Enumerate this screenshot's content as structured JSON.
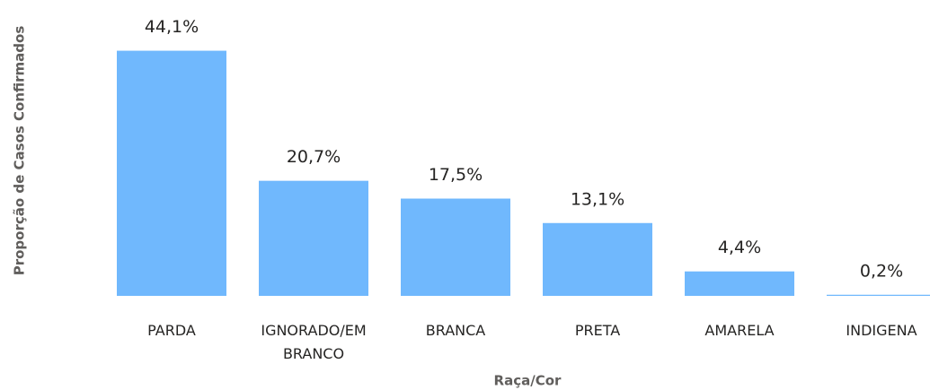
{
  "chart_data": {
    "type": "bar",
    "x_label": "Raça/Cor",
    "y_label": "Proporção de Casos Confirmados",
    "categories": [
      "PARDA",
      "IGNORADO/EM BRANCO",
      "BRANCA",
      "PRETA",
      "AMARELA",
      "INDIGENA"
    ],
    "values": [
      44.1,
      20.7,
      17.5,
      13.1,
      4.4,
      0.2
    ],
    "value_labels": [
      "44,1%",
      "20,7%",
      "17,5%",
      "13,1%",
      "4,4%",
      "0,2%"
    ],
    "color": "#70b8fd",
    "ylim": [
      0,
      50
    ]
  }
}
